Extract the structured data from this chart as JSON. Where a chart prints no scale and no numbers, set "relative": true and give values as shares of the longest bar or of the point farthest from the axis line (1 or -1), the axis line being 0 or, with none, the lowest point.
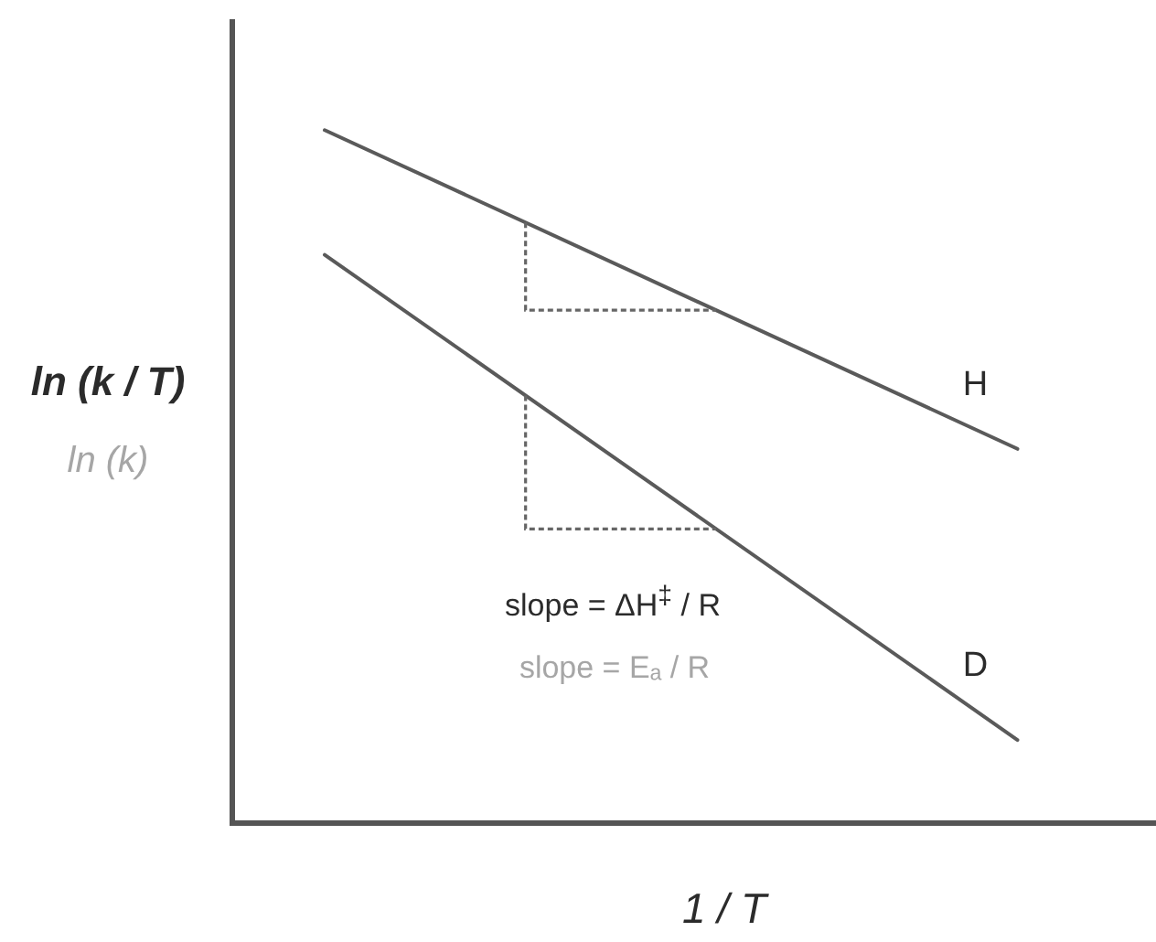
{
  "chart_data": {
    "type": "line",
    "relative": true,
    "xlabel": "1 / T",
    "ylabel": "ln (k / T)",
    "annotations": [
      "ln (k)",
      "slope = ΔH$^{‡}$ / R",
      "slope = Eₐ / R"
    ],
    "categories": [
      null,
      null,
      null,
      null,
      null,
      null,
      null,
      null,
      null,
      null,
      null,
      null,
      null,
      null,
      null,
      null,
      null,
      null,
      null,
      null,
      null
    ],
    "series": [
      {
        "name": "H",
        "color": "#5a5a5a",
        "values": [
          null,
          null,
          1,
          null,
          null,
          null,
          null,
          null,
          null,
          null,
          null,
          null,
          null,
          null,
          null,
          null,
          null,
          0.54,
          null,
          null,
          null
        ]
      },
      {
        "name": "D",
        "color": "#5a5a5a",
        "values": [
          null,
          null,
          0.82,
          null,
          null,
          null,
          null,
          null,
          null,
          null,
          null,
          null,
          null,
          null,
          null,
          null,
          null,
          0.12,
          null,
          null,
          null
        ]
      }
    ],
    "grid": false,
    "legend": false,
    "marker": "none",
    "line_style": "solid"
  }
}
